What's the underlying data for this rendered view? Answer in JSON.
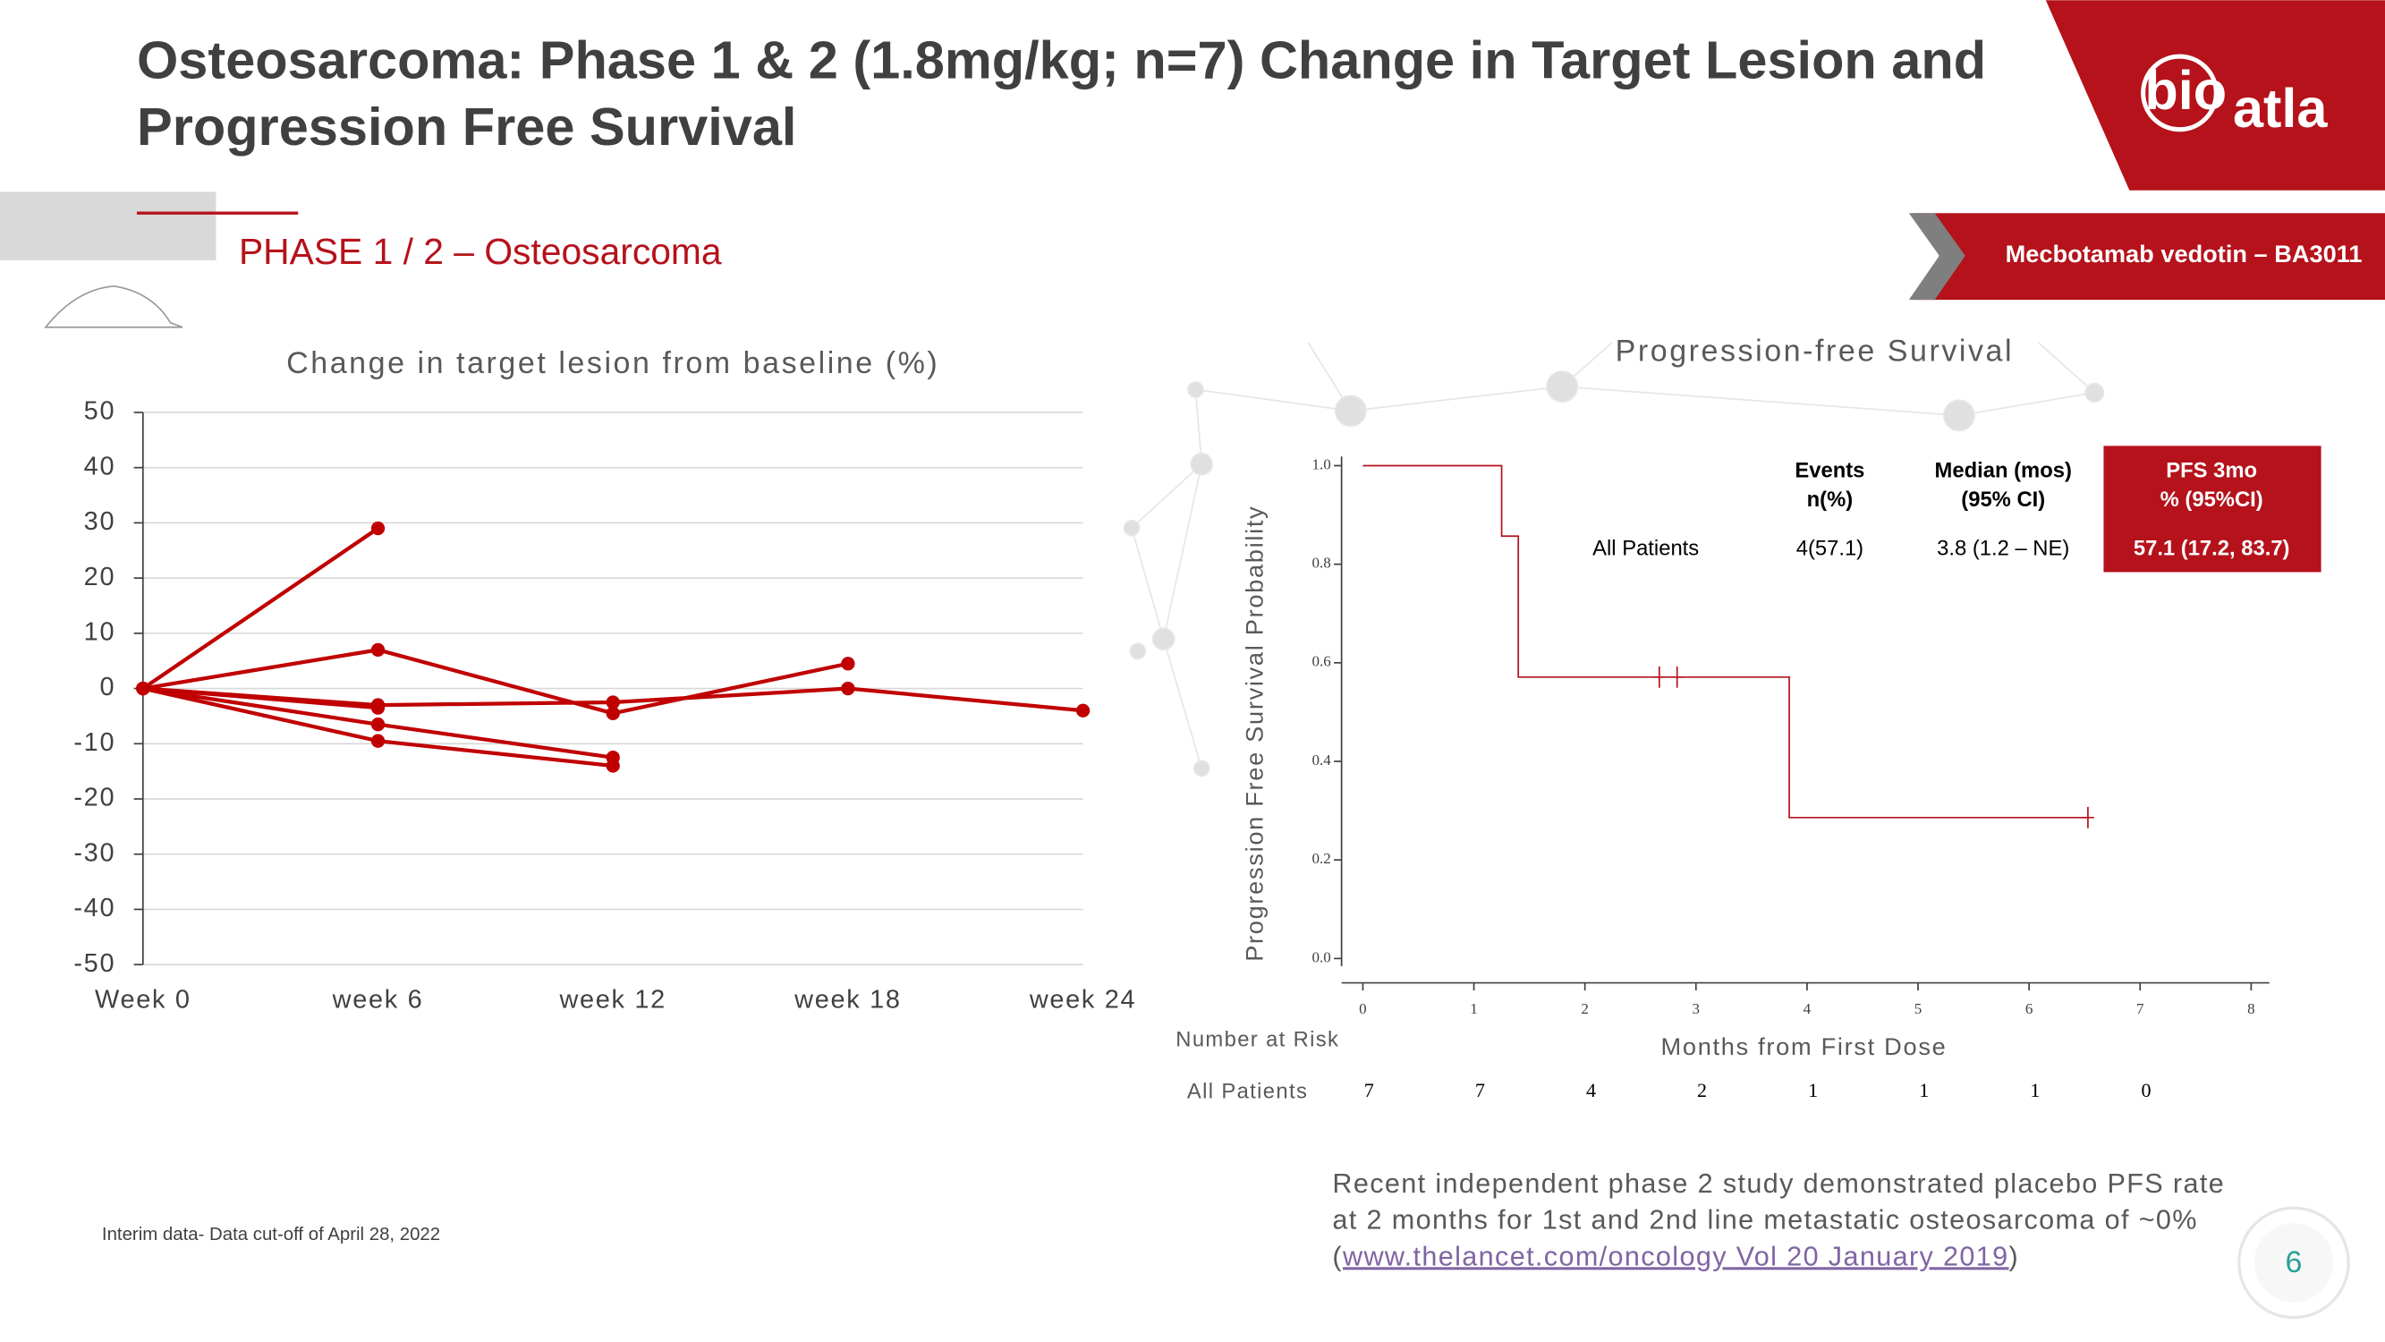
{
  "header": {
    "title_lines": [
      "Osteosarcoma: Phase 1 & 2 (1.8mg/kg; n=7) Change in Target Lesion and",
      "Progression Free Survival"
    ],
    "section": "PHASE 1 / 2 – Osteosarcoma",
    "badge": "Mecbotamab vedotin – BA3011",
    "logo": [
      "bio",
      "atla"
    ]
  },
  "chart_data": [
    {
      "type": "line",
      "title": "Change in target lesion from baseline (%)",
      "categories": [
        "Week 0",
        "week 6",
        "week 12",
        "week 18",
        "week 24"
      ],
      "color": "#c00000",
      "series": [
        {
          "values": [
            0,
            29,
            null,
            null,
            null
          ]
        },
        {
          "values": [
            0,
            7,
            -4.5,
            4.5,
            null
          ]
        },
        {
          "values": [
            0,
            -3,
            -2.5,
            0,
            -4
          ]
        },
        {
          "values": [
            0,
            -3.5,
            null,
            null,
            null
          ]
        },
        {
          "values": [
            0,
            -6.5,
            -12.5,
            null,
            null
          ]
        },
        {
          "values": [
            0,
            -9.5,
            -14,
            null,
            null
          ]
        }
      ],
      "ylim": [
        -50,
        50
      ],
      "yticks": [
        -50,
        -40,
        -30,
        -20,
        -10,
        0,
        10,
        20,
        30,
        40,
        50
      ],
      "grid": true
    },
    {
      "type": "step",
      "title": "Progression-free Survival",
      "x_label": "Months from First Dose",
      "y_label": "Progression Free Survival Probability",
      "color": "#b5121b",
      "x": [
        0,
        1.25,
        1.25,
        1.4,
        1.4,
        3.84,
        3.84,
        6.53
      ],
      "values": [
        1,
        1,
        0.857,
        0.857,
        0.571,
        0.571,
        0.286,
        0.286
      ],
      "censored": {
        "x": [
          2.67,
          2.83,
          6.53
        ],
        "values": [
          0.571,
          0.571,
          0.286
        ]
      },
      "xlim": [
        0,
        8
      ],
      "xticks": [
        0,
        1,
        2,
        3,
        4,
        5,
        6,
        7,
        8
      ],
      "ylim": [
        0,
        1
      ],
      "yticks": [
        {
          "value": 0,
          "label": "0.0"
        },
        0.2,
        0.4,
        0.6,
        0.8,
        {
          "value": 1,
          "label": "1.0"
        }
      ],
      "table": {
        "header": [
          [
            "Events",
            "n(%)"
          ],
          [
            "Median (mos)",
            "(95% CI)"
          ],
          [
            "PFS 3mo",
            "% (95%CI)"
          ]
        ],
        "row": [
          "All Patients",
          "4(57.1)",
          "3.8 (1.2 – NE)",
          "57.1 (17.2, 83.7)"
        ]
      },
      "risk": {
        "title": "Number at Risk",
        "label": "All Patients",
        "values": [
          7,
          7,
          4,
          2,
          1,
          1,
          1,
          0
        ]
      }
    }
  ],
  "footnote": "Interim data- Data cut-off of April 28, 2022",
  "note": {
    "lines": [
      "Recent independent phase 2 study demonstrated placebo PFS rate",
      "at 2 months for 1st and 2nd line metastatic osteosarcoma of ~0%"
    ],
    "open": "(",
    "link": "www.thelancet.com/oncology Vol 20 January 2019",
    "close": ")"
  },
  "page_number": "6"
}
